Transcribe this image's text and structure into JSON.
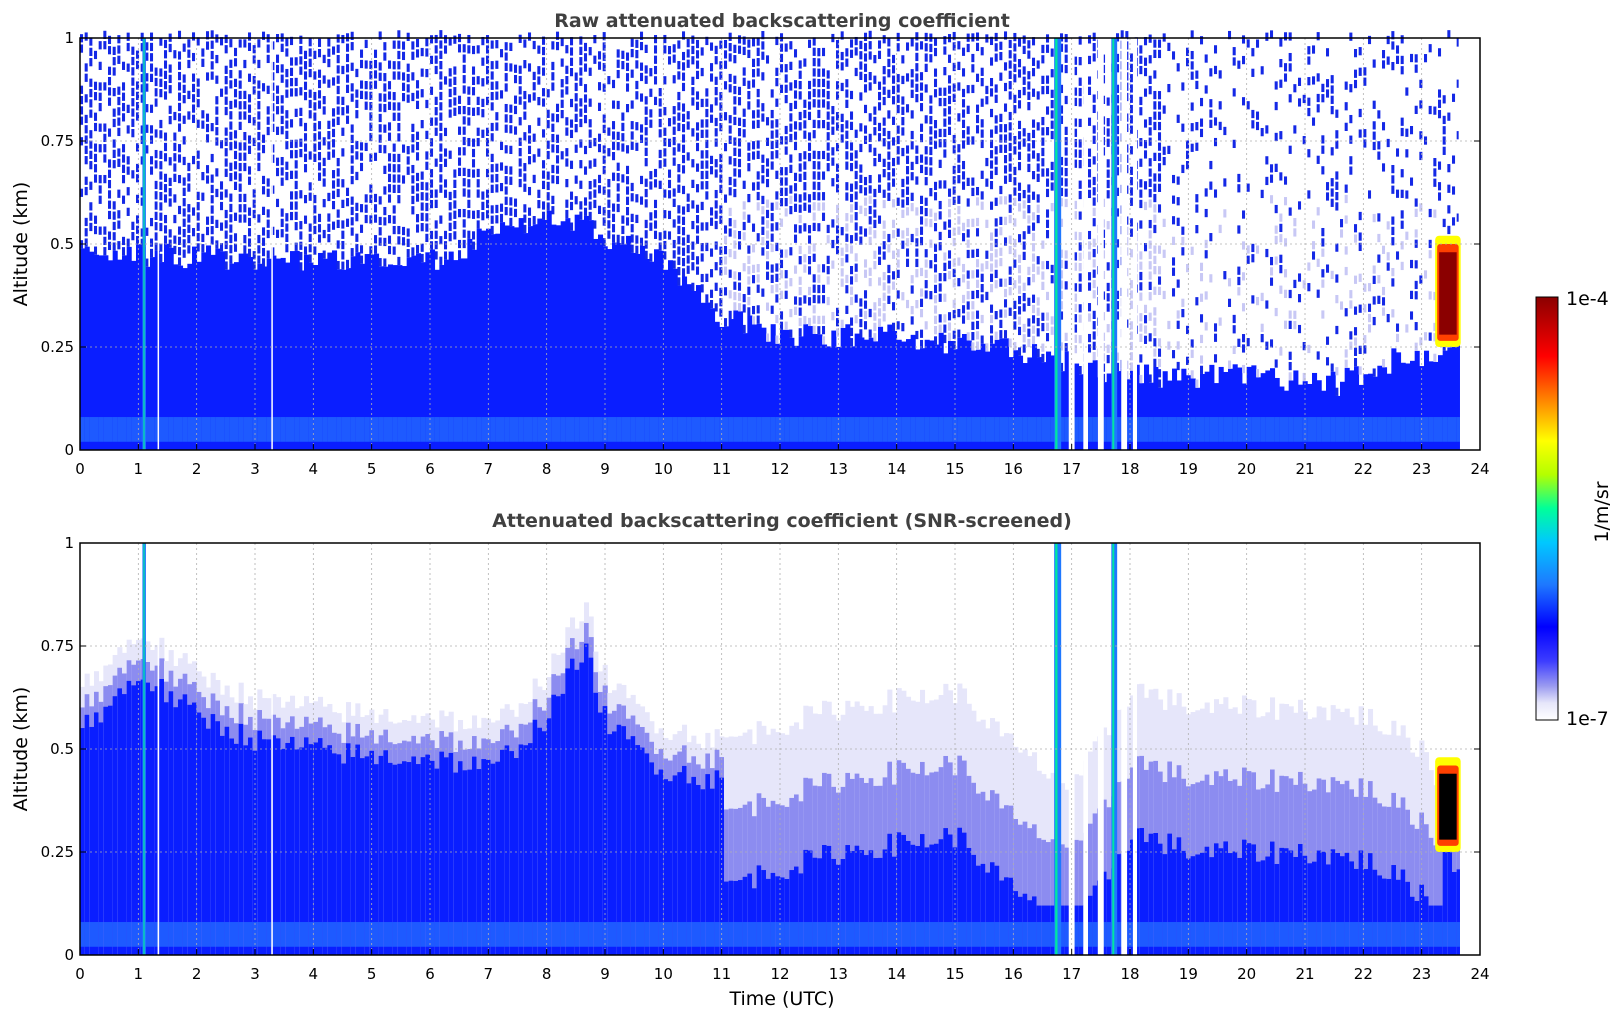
{
  "figure": {
    "type": "heatmap",
    "colorbar": {
      "max_label": "1e-4",
      "min_label": "1e-7",
      "units_label": "1/m/sr",
      "colormap": [
        "#ffffff",
        "#e6e6fa",
        "#9b9bf0",
        "#0000ff",
        "#1e78ff",
        "#00c8ff",
        "#00ff9a",
        "#b4ff00",
        "#ffff00",
        "#ff8000",
        "#ff0000",
        "#8b0000"
      ]
    },
    "xlabel": "Time (UTC)"
  },
  "chart_data": [
    {
      "type": "heatmap",
      "title": "Raw attenuated backscattering coefficient",
      "ylabel": "Altitude (km)",
      "xlabel": "",
      "xlim": [
        0,
        24
      ],
      "ylim": [
        0,
        1
      ],
      "x_ticks": [
        "0",
        "1",
        "2",
        "3",
        "4",
        "5",
        "6",
        "7",
        "8",
        "9",
        "10",
        "11",
        "12",
        "13",
        "14",
        "15",
        "16",
        "17",
        "18",
        "19",
        "20",
        "21",
        "22",
        "23",
        "24"
      ],
      "y_ticks": [
        "0",
        "0.25",
        "0.5",
        "0.75",
        "1"
      ],
      "grid": true,
      "data_end_time": 23.65,
      "features": {
        "aerosol_layer_top_km": {
          "x": [
            0,
            2,
            4,
            6,
            8,
            10,
            11,
            12,
            14,
            16,
            18,
            20,
            21.5,
            22.5,
            23.6
          ],
          "y": [
            0.48,
            0.47,
            0.46,
            0.46,
            0.58,
            0.45,
            0.32,
            0.28,
            0.28,
            0.24,
            0.18,
            0.18,
            0.16,
            0.22,
            0.25
          ]
        },
        "dense_cloud": {
          "time_start": 23.3,
          "time_end": 23.6,
          "base_km": 0.28,
          "top_km": 0.48,
          "peak_value": "1e-4"
        }
      }
    },
    {
      "type": "heatmap",
      "title": "Attenuated backscattering coefficient (SNR-screened)",
      "ylabel": "Altitude (km)",
      "xlabel": "Time (UTC)",
      "xlim": [
        0,
        24
      ],
      "ylim": [
        0,
        1
      ],
      "x_ticks": [
        "0",
        "1",
        "2",
        "3",
        "4",
        "5",
        "6",
        "7",
        "8",
        "9",
        "10",
        "11",
        "12",
        "13",
        "14",
        "15",
        "16",
        "17",
        "18",
        "19",
        "20",
        "21",
        "22",
        "23",
        "24"
      ],
      "y_ticks": [
        "0",
        "0.25",
        "0.5",
        "0.75",
        "1"
      ],
      "grid": true,
      "data_end_time": 23.65,
      "features": {
        "signal_top_km": {
          "x": [
            0,
            1,
            2,
            3,
            4,
            5,
            6,
            7,
            8,
            8.6,
            9,
            10,
            11,
            12,
            13,
            14,
            15,
            16,
            17,
            18,
            19,
            20,
            21,
            22,
            23,
            23.6
          ],
          "y": [
            0.65,
            0.78,
            0.68,
            0.62,
            0.6,
            0.58,
            0.58,
            0.55,
            0.68,
            0.85,
            0.66,
            0.55,
            0.52,
            0.56,
            0.6,
            0.62,
            0.64,
            0.5,
            0.4,
            0.65,
            0.6,
            0.6,
            0.6,
            0.58,
            0.5,
            0.3
          ]
        },
        "dense_cloud": {
          "time_start": 23.3,
          "time_end": 23.6,
          "base_km": 0.28,
          "top_km": 0.44,
          "peak_value": "saturated"
        }
      }
    }
  ]
}
